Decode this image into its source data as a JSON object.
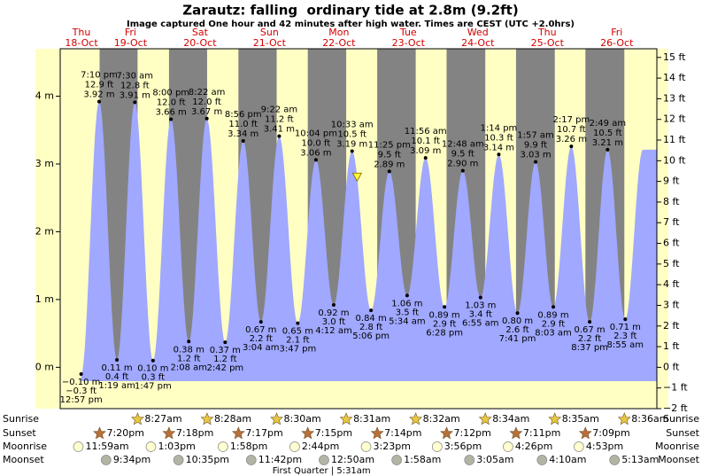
{
  "chart_data": {
    "type": "tide",
    "title": "Zarautz: falling  ordinary tide at 2.8m (9.2ft)",
    "subtitle": "Image captured One hour and 42 minutes after high water. Times are CEST (UTC +2.0hrs)",
    "current_m": 2.8,
    "ylim": [
      -0.61,
      4.7
    ],
    "yticks": [
      {
        "value": 0,
        "label": "0 m"
      },
      {
        "value": 1,
        "label": "1 m"
      },
      {
        "value": 2,
        "label": "2 m"
      },
      {
        "value": 3,
        "label": "3 m"
      },
      {
        "value": 4,
        "label": "4 m"
      }
    ],
    "y2lim": [
      -2,
      15.42
    ],
    "y2ticks": [
      {
        "value": 15,
        "label": "15 ft"
      },
      {
        "value": 14,
        "label": "14 ft"
      },
      {
        "value": 13,
        "label": "13 ft"
      },
      {
        "value": 12,
        "label": "12 ft"
      },
      {
        "value": 11,
        "label": "11 ft"
      },
      {
        "value": 10,
        "label": "10 ft"
      },
      {
        "value": 9,
        "label": "9 ft"
      },
      {
        "value": 8,
        "label": "8 ft"
      },
      {
        "value": 7,
        "label": "7 ft"
      },
      {
        "value": 6,
        "label": "6 ft"
      },
      {
        "value": 5,
        "label": "5 ft"
      },
      {
        "value": 4,
        "label": "4 ft"
      },
      {
        "value": 3,
        "label": "3 ft"
      },
      {
        "value": 2,
        "label": "2 ft"
      },
      {
        "value": 1,
        "label": "1 ft"
      },
      {
        "value": 0,
        "label": "0 ft"
      },
      {
        "value": -1,
        "label": "−1 ft"
      },
      {
        "value": -2,
        "label": "−2 ft"
      }
    ],
    "row_labels": [
      "Sunrise",
      "Sunset",
      "Moonrise",
      "Moonset"
    ],
    "moon_phase": "First Quarter | 5:31am",
    "colors": {
      "day": "#ffffc4",
      "night": "#838383",
      "water": "#a0a8ff",
      "day_label": "#d40000",
      "sunrise": "#e8c840",
      "sunset": "#b8703a",
      "moonrise": "#ffffd0",
      "moonset": "#b4b4a4"
    },
    "days": [
      {
        "day": "Thu",
        "date": "18-Oct",
        "sunrise": null,
        "sunset": "7:20pm",
        "moonrise": "11:59am",
        "moonset": "9:34pm",
        "tides": [
          {
            "time": "12:57 pm",
            "m": -0.1,
            "m_label": "−0.10 m",
            "ft_label": "−0.3 ft"
          },
          {
            "time": "7:10 pm",
            "m": 3.92,
            "m_label": "3.92 m",
            "ft_label": "12.9 ft"
          }
        ]
      },
      {
        "day": "Fri",
        "date": "19-Oct",
        "sunrise": "8:27am",
        "sunset": "7:18pm",
        "moonrise": "1:03pm",
        "moonset": "10:35pm",
        "tides": [
          {
            "time": "1:19 am",
            "m": 0.11,
            "m_label": "0.11 m",
            "ft_label": "0.4 ft"
          },
          {
            "time": "7:30 am",
            "m": 3.91,
            "m_label": "3.91 m",
            "ft_label": "12.8 ft"
          },
          {
            "time": "1:47 pm",
            "m": 0.1,
            "m_label": "0.10 m",
            "ft_label": "0.3 ft"
          },
          {
            "time": "8:00 pm",
            "m": 3.66,
            "m_label": "3.66 m",
            "ft_label": "12.0 ft"
          }
        ]
      },
      {
        "day": "Sat",
        "date": "20-Oct",
        "sunrise": "8:28am",
        "sunset": "7:17pm",
        "moonrise": "1:58pm",
        "moonset": "11:42pm",
        "tides": [
          {
            "time": "2:08 am",
            "m": 0.38,
            "m_label": "0.38 m",
            "ft_label": "1.2 ft"
          },
          {
            "time": "8:22 am",
            "m": 3.67,
            "m_label": "3.67 m",
            "ft_label": "12.0 ft"
          },
          {
            "time": "2:42 pm",
            "m": 0.37,
            "m_label": "0.37 m",
            "ft_label": "1.2 ft"
          },
          {
            "time": "8:56 pm",
            "m": 3.34,
            "m_label": "3.34 m",
            "ft_label": "11.0 ft"
          }
        ]
      },
      {
        "day": "Sun",
        "date": "21-Oct",
        "sunrise": "8:30am",
        "sunset": "7:15pm",
        "moonrise": "2:44pm",
        "moonset": null,
        "tides": [
          {
            "time": "3:04 am",
            "m": 0.67,
            "m_label": "0.67 m",
            "ft_label": "2.2 ft"
          },
          {
            "time": "9:22 am",
            "m": 3.41,
            "m_label": "3.41 m",
            "ft_label": "11.2 ft"
          },
          {
            "time": "3:47 pm",
            "m": 0.65,
            "m_label": "0.65 m",
            "ft_label": "2.1 ft"
          },
          {
            "time": "10:04 pm",
            "m": 3.06,
            "m_label": "3.06 m",
            "ft_label": "10.0 ft"
          }
        ]
      },
      {
        "day": "Mon",
        "date": "22-Oct",
        "sunrise": "8:31am",
        "sunset": "7:14pm",
        "moonrise": "3:23pm",
        "moonset": "12:50am",
        "tides": [
          {
            "time": "4:12 am",
            "m": 0.92,
            "m_label": "0.92 m",
            "ft_label": "3.0 ft"
          },
          {
            "time": "10:33 am",
            "m": 3.19,
            "m_label": "3.19 m",
            "ft_label": "10.5 ft"
          },
          {
            "time": "5:06 pm",
            "m": 0.84,
            "m_label": "0.84 m",
            "ft_label": "2.8 ft"
          },
          {
            "time": "11:25 pm",
            "m": 2.89,
            "m_label": "2.89 m",
            "ft_label": "9.5 ft"
          }
        ]
      },
      {
        "day": "Tue",
        "date": "23-Oct",
        "sunrise": "8:32am",
        "sunset": "7:12pm",
        "moonrise": "3:56pm",
        "moonset": "1:58am",
        "tides": [
          {
            "time": "5:34 am",
            "m": 1.06,
            "m_label": "1.06 m",
            "ft_label": "3.5 ft"
          },
          {
            "time": "11:56 am",
            "m": 3.09,
            "m_label": "3.09 m",
            "ft_label": "10.1 ft"
          },
          {
            "time": "6:28 pm",
            "m": 0.89,
            "m_label": "0.89 m",
            "ft_label": "2.9 ft"
          }
        ]
      },
      {
        "day": "Wed",
        "date": "24-Oct",
        "sunrise": "8:34am",
        "sunset": "7:11pm",
        "moonrise": "4:26pm",
        "moonset": "3:05am",
        "tides": [
          {
            "time": "12:48 am",
            "m": 2.9,
            "m_label": "2.90 m",
            "ft_label": "9.5 ft"
          },
          {
            "time": "6:55 am",
            "m": 1.03,
            "m_label": "1.03 m",
            "ft_label": "3.4 ft"
          },
          {
            "time": "1:14 pm",
            "m": 3.14,
            "m_label": "3.14 m",
            "ft_label": "10.3 ft"
          },
          {
            "time": "7:41 pm",
            "m": 0.8,
            "m_label": "0.80 m",
            "ft_label": "2.6 ft"
          }
        ]
      },
      {
        "day": "Thu",
        "date": "25-Oct",
        "sunrise": "8:35am",
        "sunset": "7:09pm",
        "moonrise": "4:53pm",
        "moonset": "4:10am",
        "tides": [
          {
            "time": "1:57 am",
            "m": 3.03,
            "m_label": "3.03 m",
            "ft_label": "9.9 ft"
          },
          {
            "time": "8:03 am",
            "m": 0.89,
            "m_label": "0.89 m",
            "ft_label": "2.9 ft"
          },
          {
            "time": "2:17 pm",
            "m": 3.26,
            "m_label": "3.26 m",
            "ft_label": "10.7 ft"
          },
          {
            "time": "8:37 pm",
            "m": 0.67,
            "m_label": "0.67 m",
            "ft_label": "2.2 ft"
          }
        ]
      },
      {
        "day": "Fri",
        "date": "26-Oct",
        "sunrise": "8:36am",
        "sunset": null,
        "moonrise": null,
        "moonset": "5:13am",
        "tides": [
          {
            "time": "2:49 am",
            "m": 3.21,
            "m_label": "3.21 m",
            "ft_label": "10.5 ft"
          },
          {
            "time": "8:55 am",
            "m": 0.71,
            "m_label": "0.71 m",
            "ft_label": "2.3 ft"
          }
        ]
      }
    ]
  }
}
